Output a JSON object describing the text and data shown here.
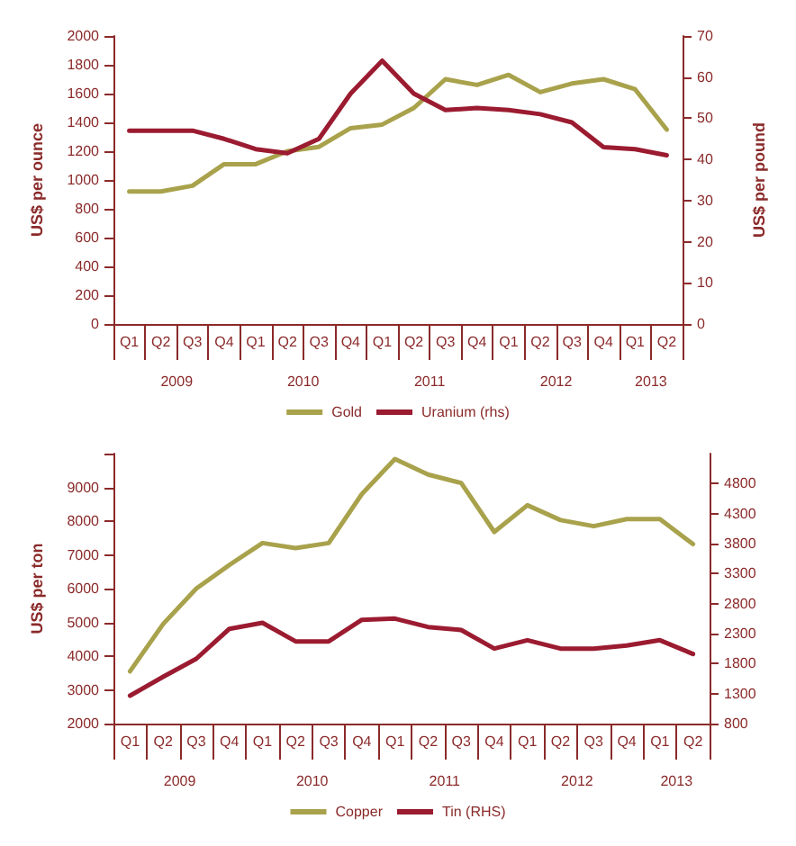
{
  "chart_data": [
    {
      "type": "line",
      "ylabel": "US$ per ounce",
      "y2label": "US$ per pound",
      "categories": [
        "Q1",
        "Q2",
        "Q3",
        "Q4",
        "Q1",
        "Q2",
        "Q3",
        "Q4",
        "Q1",
        "Q2",
        "Q3",
        "Q4",
        "Q1",
        "Q2",
        "Q3",
        "Q4",
        "Q1",
        "Q2"
      ],
      "series": [
        {
          "name": "Gold",
          "color": "#a9a24c",
          "values": [
            920,
            920,
            960,
            1110,
            1110,
            1200,
            1230,
            1360,
            1385,
            1500,
            1700,
            1660,
            1730,
            1610,
            1670,
            1700,
            1630,
            1350
          ]
        },
        {
          "name": "Uranium (rhs)",
          "color": "#9b1b30",
          "axis": "y2",
          "values": [
            47,
            47,
            47,
            45,
            42.5,
            41.5,
            45,
            56,
            64,
            56,
            52,
            52.5,
            52,
            51,
            49,
            43,
            42.5,
            41
          ]
        }
      ],
      "ylim": [
        0,
        2000
      ],
      "yticks": [
        0,
        200,
        400,
        600,
        800,
        1000,
        1200,
        1400,
        1600,
        1800,
        2000
      ],
      "y2lim": [
        0,
        70
      ],
      "y2ticks": [
        0,
        10,
        20,
        30,
        40,
        50,
        60,
        70
      ],
      "annotations": [
        "2009",
        "2010",
        "2011",
        "2012",
        "2013"
      ],
      "legend": "bottom",
      "grid": false,
      "marker": "none",
      "line_style": "solid"
    },
    {
      "type": "line",
      "ylabel": "US$ per ton",
      "categories": [
        "Q1",
        "Q2",
        "Q3",
        "Q4",
        "Q1",
        "Q2",
        "Q3",
        "Q4",
        "Q1",
        "Q2",
        "Q3",
        "Q4",
        "Q1",
        "Q2",
        "Q3",
        "Q4",
        "Q1",
        "Q2"
      ],
      "series": [
        {
          "name": "Copper",
          "color": "#a9a24c",
          "values": [
            3550,
            4950,
            6000,
            6700,
            7350,
            7200,
            7350,
            8800,
            9840,
            9380,
            9130,
            7680,
            8470,
            8030,
            7850,
            8060,
            8060,
            7320
          ]
        },
        {
          "name": "Tin (RHS)",
          "color": "#9b1b30",
          "axis": "y2",
          "values": [
            1265,
            1580,
            1880,
            2380,
            2480,
            2170,
            2170,
            2530,
            2550,
            2410,
            2360,
            2050,
            2190,
            2050,
            2050,
            2100,
            2190,
            1960
          ]
        }
      ],
      "ylim": [
        2000,
        10000
      ],
      "yticks": [
        2000,
        3000,
        4000,
        5000,
        6000,
        7000,
        8000,
        9000,
        {
          "value": 10000,
          "label": null
        }
      ],
      "y2lim": [
        800,
        5300
      ],
      "y2ticks": [
        800,
        1300,
        1800,
        2300,
        2800,
        3300,
        3800,
        4300,
        4800
      ],
      "annotations": [
        "2009",
        "2010",
        "2011",
        "2012",
        "2013"
      ],
      "legend": "bottom",
      "grid": false,
      "marker": "none",
      "line_style": "solid"
    }
  ]
}
